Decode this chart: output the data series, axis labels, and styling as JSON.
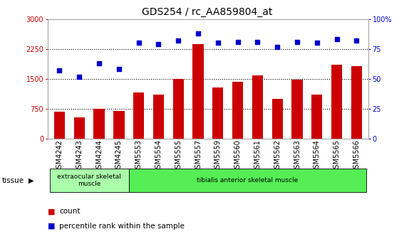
{
  "title": "GDS254 / rc_AA859804_at",
  "categories": [
    "GSM4242",
    "GSM4243",
    "GSM4244",
    "GSM4245",
    "GSM5553",
    "GSM5554",
    "GSM5555",
    "GSM5557",
    "GSM5559",
    "GSM5560",
    "GSM5561",
    "GSM5562",
    "GSM5563",
    "GSM5564",
    "GSM5565",
    "GSM5566"
  ],
  "counts": [
    680,
    530,
    750,
    700,
    1150,
    1100,
    1500,
    2380,
    1280,
    1420,
    1580,
    1000,
    1480,
    1100,
    1850,
    1820
  ],
  "percentiles": [
    57,
    52,
    63,
    58,
    80,
    79,
    82,
    88,
    80,
    81,
    81,
    77,
    81,
    80,
    83,
    82
  ],
  "bar_color": "#cc0000",
  "dot_color": "#0000cc",
  "left_ylim": [
    0,
    3000
  ],
  "right_ylim": [
    0,
    100
  ],
  "left_yticks": [
    0,
    750,
    1500,
    2250,
    3000
  ],
  "right_yticks": [
    0,
    25,
    50,
    75,
    100
  ],
  "right_yticklabels": [
    "0",
    "25",
    "50",
    "75",
    "100%"
  ],
  "hlines": [
    750,
    1500,
    2250
  ],
  "tissue_groups": [
    {
      "label": "extraocular skeletal\nmuscle",
      "start": 0,
      "end": 4,
      "color": "#aaffaa"
    },
    {
      "label": "tibialis anterior skeletal muscle",
      "start": 4,
      "end": 16,
      "color": "#55ee55"
    }
  ],
  "tissue_label": "tissue",
  "bg_color": "#ffffff",
  "title_fontsize": 10,
  "tick_fontsize": 7,
  "axis_label_color_left": "#cc0000",
  "axis_label_color_right": "#0000cc"
}
